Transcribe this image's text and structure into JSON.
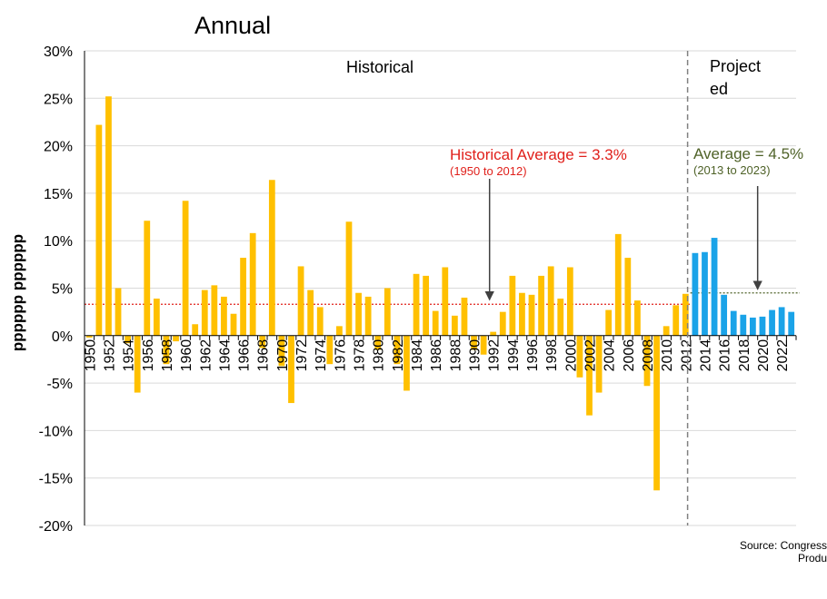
{
  "title": "Annual",
  "source_line1": "Source: Congress",
  "source_line2": "Produ",
  "colors": {
    "historical": "#FFC000",
    "projected": "#1AA3E8",
    "hist_avg_line": "#E0201B",
    "proj_avg_line": "#4F6228",
    "divider": "#808080",
    "grid": "#D9D9D9"
  },
  "chart_data": {
    "type": "bar",
    "title": "Annual",
    "ylabel": "pppppp pppppp",
    "xlabel": "",
    "ylim": [
      -20,
      30
    ],
    "y_ticks": [
      -20,
      -15,
      -10,
      -5,
      0,
      5,
      10,
      15,
      20,
      25,
      30
    ],
    "y_tick_labels": [
      "-20%",
      "-15%",
      "-10%",
      "-5%",
      "0%",
      "5%",
      "10%",
      "15%",
      "20%",
      "25%",
      "30%"
    ],
    "grid": true,
    "x_tick_labels": [
      "1950",
      "1952",
      "1954",
      "1956",
      "1958",
      "1960",
      "1962",
      "1964",
      "1966",
      "1968",
      "1970",
      "1972",
      "1974",
      "1976",
      "1978",
      "1980",
      "1982",
      "1984",
      "1986",
      "1988",
      "1990",
      "1992",
      "1994",
      "1996",
      "1998",
      "2000",
      "2002",
      "2004",
      "2006",
      "2008",
      "2010",
      "2012",
      "2014",
      "2016",
      "2018",
      "2020",
      "2022"
    ],
    "series": [
      {
        "name": "Historical",
        "years": [
          1950,
          1951,
          1952,
          1953,
          1954,
          1955,
          1956,
          1957,
          1958,
          1959,
          1960,
          1961,
          1962,
          1963,
          1964,
          1965,
          1966,
          1967,
          1968,
          1969,
          1970,
          1971,
          1972,
          1973,
          1974,
          1975,
          1976,
          1977,
          1978,
          1979,
          1980,
          1981,
          1982,
          1983,
          1984,
          1985,
          1986,
          1987,
          1988,
          1989,
          1990,
          1991,
          1992,
          1993,
          1994,
          1995,
          1996,
          1997,
          1998,
          1999,
          2000,
          2001,
          2002,
          2003,
          2004,
          2005,
          2006,
          2007,
          2008,
          2009,
          2010,
          2011,
          2012
        ],
        "values": [
          -0.2,
          22.2,
          25.2,
          5.0,
          -0.8,
          -6.0,
          12.1,
          3.9,
          -3.0,
          -0.6,
          14.2,
          1.2,
          4.8,
          5.3,
          4.1,
          2.3,
          8.2,
          10.8,
          -1.3,
          16.4,
          -3.2,
          -7.1,
          7.3,
          4.8,
          3.0,
          -3.0,
          1.0,
          12.0,
          4.5,
          4.1,
          -1.5,
          5.0,
          -3.0,
          -5.8,
          6.5,
          6.3,
          2.6,
          7.2,
          2.1,
          4.0,
          -1.5,
          -2.0,
          0.4,
          2.5,
          6.3,
          4.5,
          4.3,
          6.3,
          7.3,
          3.9,
          7.2,
          -4.4,
          -8.4,
          -6.0,
          2.7,
          10.7,
          8.2,
          3.7,
          -5.3,
          -16.3,
          1.0,
          3.2,
          4.4
        ]
      },
      {
        "name": "Projected",
        "years": [
          2013,
          2014,
          2015,
          2016,
          2017,
          2018,
          2019,
          2020,
          2021,
          2022,
          2023
        ],
        "values": [
          8.7,
          8.8,
          10.3,
          4.3,
          2.6,
          2.2,
          1.9,
          2.0,
          2.7,
          3.0,
          2.5
        ]
      }
    ],
    "annotations": [
      {
        "text": "Historical",
        "near_year": 1985,
        "at_value": 28
      },
      {
        "text": "Projected",
        "near_year": 2018.5,
        "at_value": 28
      },
      {
        "text": "Historical Average = 3.3%",
        "subtext": "(1950 to 2012)",
        "value": 3.3,
        "range": [
          1950,
          2012
        ],
        "arrow_year": 1992
      },
      {
        "text": "Average = 4.5%",
        "subtext": "(2013 to 2023)",
        "value": 4.5,
        "range": [
          2013,
          2023
        ],
        "arrow_year": 2019.5
      }
    ]
  }
}
